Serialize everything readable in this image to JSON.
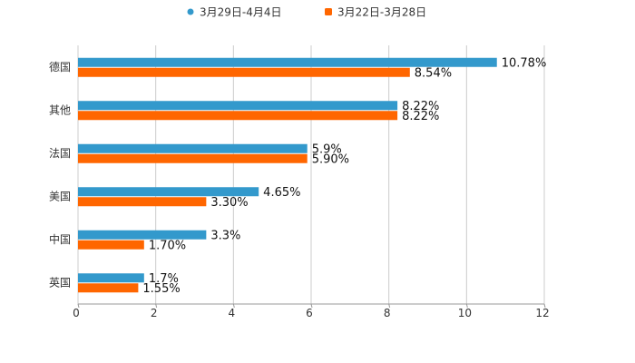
{
  "chart_data": {
    "type": "bar",
    "orientation": "horizontal",
    "title": "",
    "xlabel": "",
    "ylabel": "",
    "categories": [
      "德国",
      "其他",
      "法国",
      "美国",
      "中国",
      "英国"
    ],
    "series": [
      {
        "name": "3月29日-4月4日",
        "color": "#3399CC",
        "legend_marker": "circle",
        "values": [
          10.78,
          8.22,
          5.9,
          4.65,
          3.3,
          1.7
        ],
        "labels": [
          "10.78%",
          "8.22%",
          "5.9%",
          "4.65%",
          "3.3%",
          "1.7%"
        ]
      },
      {
        "name": "3月22日-3月28日",
        "color": "#FF6600",
        "legend_marker": "square",
        "values": [
          8.54,
          8.22,
          5.9,
          3.3,
          1.7,
          1.55
        ],
        "labels": [
          "8.54%",
          "8.22%",
          "5.90%",
          "3.30%",
          "1.70%",
          "1.55%"
        ]
      }
    ],
    "xlim": [
      0,
      12
    ],
    "xticks": [
      "0",
      "2",
      "4",
      "6",
      "8",
      "10",
      "12"
    ],
    "grid": true,
    "legend_position": "top-center"
  }
}
